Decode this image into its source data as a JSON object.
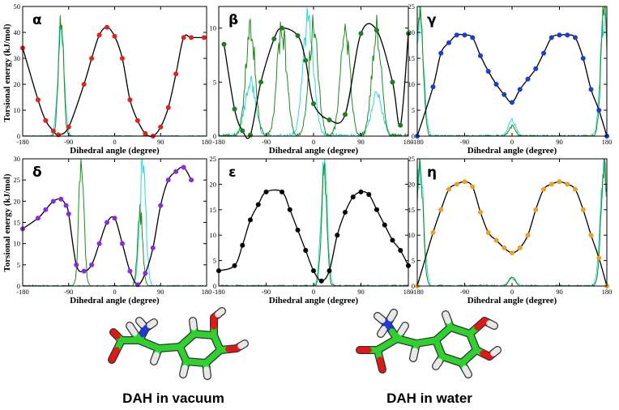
{
  "colors": {
    "fit": "#000000",
    "hist_vacuum": "#1e8c1e",
    "hist_water": "#30d8d8",
    "alpha_points": "#e2231a",
    "beta_points": "#1e7d1e",
    "gamma_points": "#1640d0",
    "delta_points": "#8a2be2",
    "epsilon_points": "#000000",
    "eta_points": "#f0a020",
    "carbon": "#2ed12e",
    "nitrogen": "#2038d8",
    "oxygen": "#e01818",
    "hydrogen": "#e8e8e8"
  },
  "xlabel": "Dihedral angle (degree)",
  "ylabel": "Torsional energy (kJ/mol)",
  "molecule_labels": [
    "DAH in vacuum",
    "DAH in water"
  ],
  "chart_data": [
    {
      "type": "line",
      "panel": "α",
      "xlim": [
        -180,
        180
      ],
      "ylim": [
        0,
        50
      ],
      "xticks": [
        "-180",
        "-90",
        "0",
        "90",
        "180"
      ],
      "yticks": [
        "0",
        "10",
        "20",
        "30",
        "40",
        "50"
      ],
      "points": [
        [
          -180,
          34
        ],
        [
          -150,
          14
        ],
        [
          -135,
          6
        ],
        [
          -120,
          2
        ],
        [
          -110,
          0.5
        ],
        [
          -90,
          3.5
        ],
        [
          -60,
          20
        ],
        [
          -45,
          30
        ],
        [
          -30,
          39
        ],
        [
          -15,
          42
        ],
        [
          0,
          38.5
        ],
        [
          15,
          30
        ],
        [
          30,
          14
        ],
        [
          45,
          6
        ],
        [
          60,
          1
        ],
        [
          75,
          0
        ],
        [
          90,
          3.5
        ],
        [
          105,
          11
        ],
        [
          120,
          24
        ],
        [
          135,
          38
        ],
        [
          150,
          38
        ],
        [
          175,
          38
        ]
      ],
      "hist_vacuum": [
        [
          -105,
          45
        ]
      ],
      "hist_water": [
        [
          -105,
          44
        ]
      ]
    },
    {
      "type": "line",
      "panel": "β",
      "xlim": [
        -180,
        180
      ],
      "ylim": [
        0,
        12
      ],
      "xticks": [
        "-180",
        "-90",
        "0",
        "90",
        "180"
      ],
      "yticks": [
        "0",
        "5",
        "10"
      ],
      "points": [
        [
          -170,
          8.5
        ],
        [
          -150,
          2.5
        ],
        [
          -135,
          0.5
        ],
        [
          -120,
          0.1
        ],
        [
          -100,
          5
        ],
        [
          -75,
          9
        ],
        [
          -60,
          10
        ],
        [
          -30,
          9.3
        ],
        [
          -15,
          7
        ],
        [
          0,
          3
        ],
        [
          30,
          1.5
        ],
        [
          60,
          2
        ],
        [
          90,
          9.5
        ],
        [
          120,
          9.8
        ],
        [
          150,
          5
        ],
        [
          165,
          1
        ],
        [
          180,
          9.5
        ]
      ],
      "hist_vacuum": [
        [
          -120,
          10
        ],
        [
          -60,
          10
        ],
        [
          0,
          10
        ],
        [
          60,
          10
        ],
        [
          120,
          10
        ]
      ],
      "hist_water": [
        [
          -120,
          5
        ],
        [
          -10,
          11
        ],
        [
          120,
          4
        ]
      ]
    },
    {
      "type": "line",
      "panel": "γ",
      "xlim": [
        -180,
        180
      ],
      "ylim": [
        0,
        25
      ],
      "xticks": [
        "-180",
        "-90",
        "0",
        "90",
        "180"
      ],
      "yticks": [
        "0",
        "5",
        "10",
        "15",
        "20",
        "25"
      ],
      "points": [
        [
          -180,
          0
        ],
        [
          -150,
          9.5
        ],
        [
          -135,
          16
        ],
        [
          -120,
          18
        ],
        [
          -105,
          19.5
        ],
        [
          -90,
          19.5
        ],
        [
          -75,
          19
        ],
        [
          -60,
          15.5
        ],
        [
          -45,
          12.5
        ],
        [
          -30,
          10
        ],
        [
          -15,
          8
        ],
        [
          0,
          6.5
        ],
        [
          15,
          9
        ],
        [
          30,
          11
        ],
        [
          45,
          13
        ],
        [
          60,
          16
        ],
        [
          75,
          19
        ],
        [
          90,
          19.5
        ],
        [
          105,
          19.5
        ],
        [
          120,
          19
        ],
        [
          135,
          15
        ],
        [
          150,
          9
        ],
        [
          165,
          5
        ],
        [
          180,
          0
        ]
      ],
      "hist_vacuum": [
        [
          -175,
          24
        ],
        [
          0,
          2
        ],
        [
          175,
          24
        ]
      ],
      "hist_water": [
        [
          -175,
          23
        ],
        [
          0,
          3
        ],
        [
          175,
          23
        ]
      ]
    },
    {
      "type": "line",
      "panel": "δ",
      "xlim": [
        -180,
        180
      ],
      "ylim": [
        0,
        30
      ],
      "xticks": [
        "-180",
        "-90",
        "0",
        "90",
        "180"
      ],
      "yticks": [
        "0",
        "5",
        "10",
        "15",
        "20",
        "25",
        "30"
      ],
      "points": [
        [
          -180,
          13.5
        ],
        [
          -150,
          16
        ],
        [
          -135,
          18
        ],
        [
          -120,
          20
        ],
        [
          -105,
          20.5
        ],
        [
          -95,
          19
        ],
        [
          -90,
          17
        ],
        [
          -75,
          5
        ],
        [
          -60,
          3.5
        ],
        [
          -45,
          5
        ],
        [
          -30,
          10
        ],
        [
          -15,
          15
        ],
        [
          0,
          16
        ],
        [
          15,
          10
        ],
        [
          30,
          3.5
        ],
        [
          45,
          0.3
        ],
        [
          60,
          3
        ],
        [
          75,
          9
        ],
        [
          90,
          19
        ],
        [
          105,
          25
        ],
        [
          120,
          27
        ],
        [
          135,
          28
        ],
        [
          150,
          25
        ]
      ],
      "hist_vacuum": [
        [
          -65,
          30
        ],
        [
          50,
          17
        ]
      ],
      "hist_water": [
        [
          55,
          29
        ]
      ]
    },
    {
      "type": "line",
      "panel": "ε",
      "xlim": [
        -180,
        180
      ],
      "ylim": [
        0,
        25
      ],
      "xticks": [
        "-180",
        "-90",
        "0",
        "90",
        "180"
      ],
      "yticks": [
        "0",
        "5",
        "10",
        "15",
        "20",
        "25"
      ],
      "points": [
        [
          -180,
          3
        ],
        [
          -150,
          4
        ],
        [
          -135,
          8
        ],
        [
          -120,
          13
        ],
        [
          -105,
          16
        ],
        [
          -90,
          18.5
        ],
        [
          -60,
          18.5
        ],
        [
          -45,
          15
        ],
        [
          -30,
          11
        ],
        [
          -15,
          7
        ],
        [
          0,
          3
        ],
        [
          15,
          1
        ],
        [
          30,
          3
        ],
        [
          45,
          10
        ],
        [
          60,
          14.5
        ],
        [
          75,
          17.5
        ],
        [
          90,
          18.5
        ],
        [
          105,
          18
        ],
        [
          120,
          15
        ],
        [
          135,
          12
        ],
        [
          150,
          9
        ],
        [
          165,
          7
        ],
        [
          180,
          4
        ]
      ],
      "hist_vacuum": [
        [
          20,
          23
        ]
      ],
      "hist_water": [
        [
          20,
          23.5
        ]
      ]
    },
    {
      "type": "line",
      "panel": "η",
      "xlim": [
        -180,
        180
      ],
      "ylim": [
        0,
        25
      ],
      "xticks": [
        "-180",
        "-90",
        "0",
        "90",
        "180"
      ],
      "yticks": [
        "0",
        "5",
        "10",
        "15",
        "20",
        "25"
      ],
      "points": [
        [
          -180,
          0
        ],
        [
          -150,
          10.5
        ],
        [
          -135,
          15
        ],
        [
          -120,
          19
        ],
        [
          -105,
          20
        ],
        [
          -90,
          20.5
        ],
        [
          -75,
          19.5
        ],
        [
          -60,
          14.5
        ],
        [
          -45,
          10.5
        ],
        [
          -30,
          9
        ],
        [
          -15,
          7.5
        ],
        [
          0,
          6.5
        ],
        [
          15,
          7.5
        ],
        [
          30,
          10
        ],
        [
          45,
          15
        ],
        [
          60,
          19
        ],
        [
          75,
          20
        ],
        [
          90,
          20.5
        ],
        [
          105,
          20
        ],
        [
          120,
          19
        ],
        [
          135,
          15
        ],
        [
          150,
          10
        ],
        [
          165,
          5.5
        ],
        [
          180,
          0
        ]
      ],
      "hist_vacuum": [
        [
          -175,
          24
        ],
        [
          0,
          1.8
        ],
        [
          175,
          24
        ]
      ],
      "hist_water": [
        [
          -175,
          23
        ],
        [
          0,
          1.5
        ],
        [
          175,
          23
        ]
      ]
    }
  ]
}
